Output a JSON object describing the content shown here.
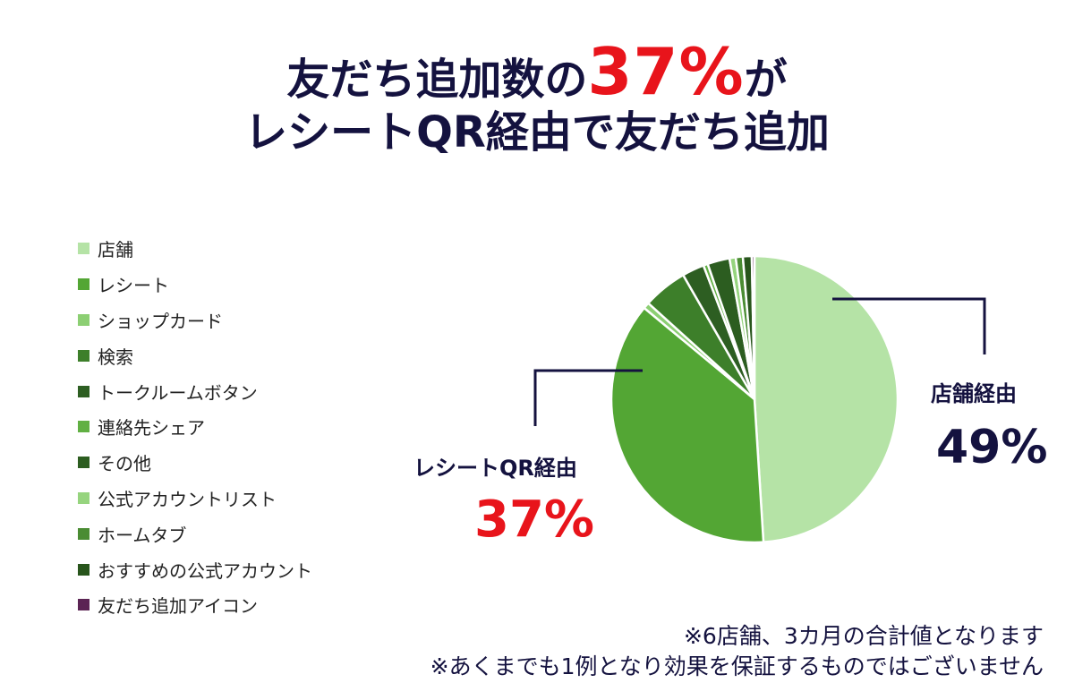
{
  "header": {
    "line1_prefix": "友だち追加数の",
    "line1_highlight": "37%",
    "line1_suffix": "が",
    "line2": "レシートQR経由で友だち追加"
  },
  "callouts": {
    "store_label": "店舗経由",
    "store_value": "49%",
    "receipt_label": "レシートQR経由",
    "receipt_value": "37%"
  },
  "notes": [
    "※6店舗、3カ月の合計値となります",
    "※あくまでも1例となり効果を保証するものではございません"
  ],
  "chart_data": {
    "type": "pie",
    "start": "12 o'clock",
    "direction": "clockwise",
    "legend_position": "left",
    "categories": [
      "店舗",
      "レシート",
      "ショップカード",
      "検索",
      "トークルームボタン",
      "連絡先シェア",
      "その他",
      "公式アカウントリスト",
      "ホームタブ",
      "おすすめの公式アカウント",
      "友だち追加アイコン"
    ],
    "values": [
      49.0,
      37.0,
      0.7,
      5.0,
      2.5,
      0.5,
      2.5,
      0.7,
      0.8,
      1.0,
      0.3
    ],
    "colors": [
      "#b5e3a6",
      "#53a634",
      "#8ccf73",
      "#3d7f2a",
      "#2d5e22",
      "#61b043",
      "#2c5d20",
      "#96d47e",
      "#4a8c33",
      "#28551c",
      "#5b2454"
    ]
  }
}
